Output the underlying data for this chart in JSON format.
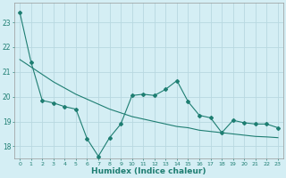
{
  "xlabel": "Humidex (Indice chaleur)",
  "bg_color": "#d4eef4",
  "grid_color": "#b8d8e0",
  "line_color": "#1e7e72",
  "x_values": [
    0,
    1,
    2,
    3,
    4,
    5,
    6,
    7,
    8,
    9,
    10,
    11,
    12,
    13,
    14,
    15,
    16,
    17,
    18,
    19,
    20,
    21,
    22,
    23
  ],
  "y_line1": [
    23.4,
    21.4,
    19.85,
    19.75,
    19.6,
    19.5,
    18.3,
    17.6,
    18.35,
    18.9,
    20.05,
    20.1,
    20.05,
    20.3,
    20.65,
    19.8,
    19.25,
    19.15,
    18.55,
    19.05,
    18.95,
    18.9,
    18.9,
    18.75
  ],
  "y_line2": [
    21.5,
    21.2,
    20.9,
    20.6,
    20.35,
    20.1,
    19.9,
    19.7,
    19.5,
    19.35,
    19.2,
    19.1,
    19.0,
    18.9,
    18.8,
    18.75,
    18.65,
    18.6,
    18.55,
    18.5,
    18.45,
    18.4,
    18.38,
    18.35
  ],
  "ylim": [
    17.5,
    23.8
  ],
  "yticks": [
    18,
    19,
    20,
    21,
    22,
    23
  ],
  "xticks": [
    0,
    1,
    2,
    3,
    4,
    5,
    6,
    7,
    8,
    9,
    10,
    11,
    12,
    13,
    14,
    15,
    16,
    17,
    18,
    19,
    20,
    21,
    22,
    23
  ]
}
